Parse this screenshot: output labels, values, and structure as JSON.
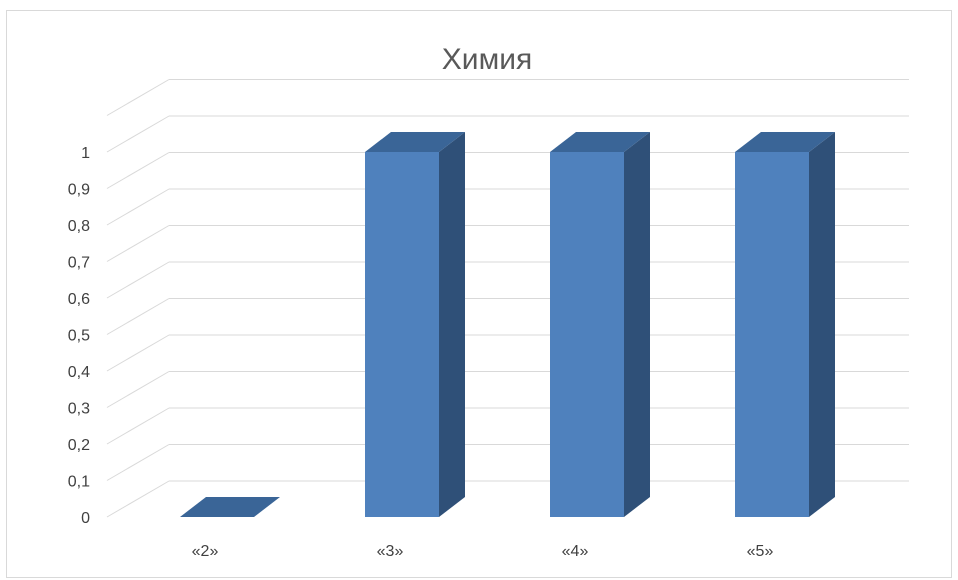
{
  "chart_data": {
    "type": "bar",
    "style": "3d-column",
    "title": "Химия",
    "xlabel": "",
    "ylabel": "",
    "categories": [
      "«2»",
      "«3»",
      "«4»",
      "«5»"
    ],
    "series": [
      {
        "values": [
          0,
          1,
          1,
          1
        ]
      }
    ],
    "ylim": [
      0,
      1.1
    ],
    "yticks": [
      "0",
      "0,1",
      "0,2",
      "0,3",
      "0,4",
      "0,5",
      "0,6",
      "0,7",
      "0,8",
      "0,9",
      "1"
    ],
    "grid": true,
    "legend": "none"
  },
  "colors": {
    "bar_front": "#4f81bd",
    "bar_side": "#2f5078",
    "bar_top": "#3a6597",
    "grid": "#d9d9d9",
    "text": "#404040",
    "title": "#595959"
  }
}
